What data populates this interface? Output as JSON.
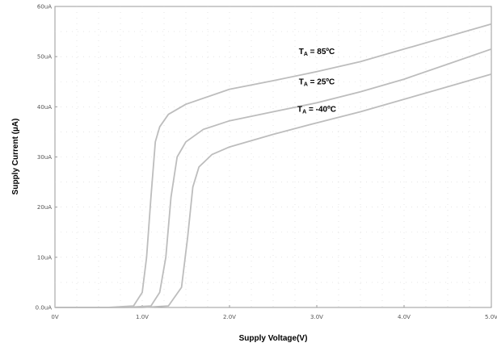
{
  "chart_data": {
    "type": "line",
    "title": "",
    "xlabel": "Supply Voltage(V)",
    "ylabel": "Supply Current (µA)",
    "xlim": [
      0,
      5
    ],
    "ylim": [
      0,
      60
    ],
    "x_ticks": [
      0,
      1,
      2,
      3,
      4,
      5
    ],
    "x_tick_labels": [
      "0V",
      "1.0V",
      "2.0V",
      "3.0V",
      "4.0V",
      "5.0V"
    ],
    "y_ticks": [
      0,
      10,
      20,
      30,
      40,
      50,
      60
    ],
    "y_tick_labels": [
      "0.0uA",
      "10uA",
      "20uA",
      "30uA",
      "40uA",
      "50uA",
      "60uA"
    ],
    "grid": true,
    "line_color": "#bdbdbd",
    "series": [
      {
        "name": "TA = 85ºC",
        "label_main": "T",
        "label_sub": "A",
        "label_rest": " = 85ºC",
        "x": [
          0,
          0.6,
          0.9,
          1.0,
          1.05,
          1.1,
          1.15,
          1.2,
          1.3,
          1.5,
          2.0,
          2.5,
          3.0,
          3.5,
          4.0,
          4.5,
          5.0
        ],
        "y": [
          0,
          0,
          0.3,
          3.0,
          10.0,
          22.0,
          33.0,
          36.0,
          38.5,
          40.5,
          43.5,
          45.2,
          47.0,
          49.0,
          51.5,
          54.0,
          56.5
        ]
      },
      {
        "name": "TA = 25ºC",
        "label_main": "T",
        "label_sub": "A",
        "label_rest": " = 25ºC",
        "x": [
          0,
          0.8,
          1.1,
          1.2,
          1.27,
          1.33,
          1.4,
          1.5,
          1.7,
          2.0,
          2.5,
          3.0,
          3.5,
          4.0,
          4.5,
          5.0
        ],
        "y": [
          0,
          0,
          0.3,
          3.0,
          10.0,
          22.0,
          30.0,
          33.0,
          35.5,
          37.2,
          39.0,
          40.8,
          43.0,
          45.5,
          48.5,
          51.5
        ]
      },
      {
        "name": "TA = -40ºC",
        "label_main": "T",
        "label_sub": "A",
        "label_rest": " = -40ºC",
        "x": [
          0,
          1.0,
          1.3,
          1.45,
          1.52,
          1.58,
          1.65,
          1.8,
          2.0,
          2.5,
          3.0,
          3.5,
          4.0,
          4.5,
          5.0
        ],
        "y": [
          0,
          0,
          0.3,
          4.0,
          14.0,
          24.0,
          28.0,
          30.5,
          32.0,
          34.5,
          36.8,
          39.0,
          41.5,
          44.0,
          46.5
        ]
      }
    ],
    "annotations": [
      {
        "series": 0,
        "x": 3.0,
        "y": 50.5
      },
      {
        "series": 1,
        "x": 3.0,
        "y": 44.5
      },
      {
        "series": 2,
        "x": 3.0,
        "y": 39.0
      }
    ]
  }
}
